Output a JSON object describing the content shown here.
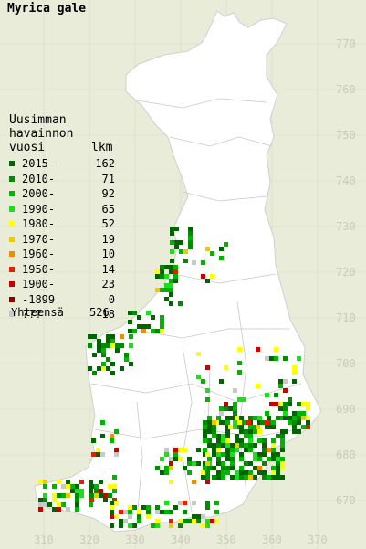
{
  "title": "Myrica gale",
  "legend": {
    "header_lines": [
      "Uusimman",
      "havainnon",
      "vuosi"
    ],
    "count_header": "lkm",
    "items": [
      {
        "label": "2015-",
        "count": "162",
        "color": "#006400"
      },
      {
        "label": "2010-",
        "count": "71",
        "color": "#008c00"
      },
      {
        "label": "2000-",
        "count": "92",
        "color": "#00b400"
      },
      {
        "label": "1990-",
        "count": "65",
        "color": "#1edc1e"
      },
      {
        "label": "1980-",
        "count": "52",
        "color": "#ffff00"
      },
      {
        "label": "1970-",
        "count": "19",
        "color": "#f0c800"
      },
      {
        "label": "1960-",
        "count": "10",
        "color": "#f08c00"
      },
      {
        "label": "1950-",
        "count": "14",
        "color": "#e61e00"
      },
      {
        "label": "1900-",
        "count": "23",
        "color": "#c80000"
      },
      {
        "label": "-1899",
        "count": "0",
        "color": "#8c0000"
      },
      {
        "label": "???",
        "count": "18",
        "color": "#c8c8c8"
      }
    ],
    "total_label": "Yhteensä",
    "total_count": "526"
  },
  "grid": {
    "north_labels": [
      "770",
      "760",
      "750",
      "740",
      "730",
      "720",
      "710",
      "700",
      "690",
      "680",
      "670"
    ],
    "east_labels": [
      "310",
      "320",
      "330",
      "340",
      "350",
      "360",
      "370"
    ]
  }
}
